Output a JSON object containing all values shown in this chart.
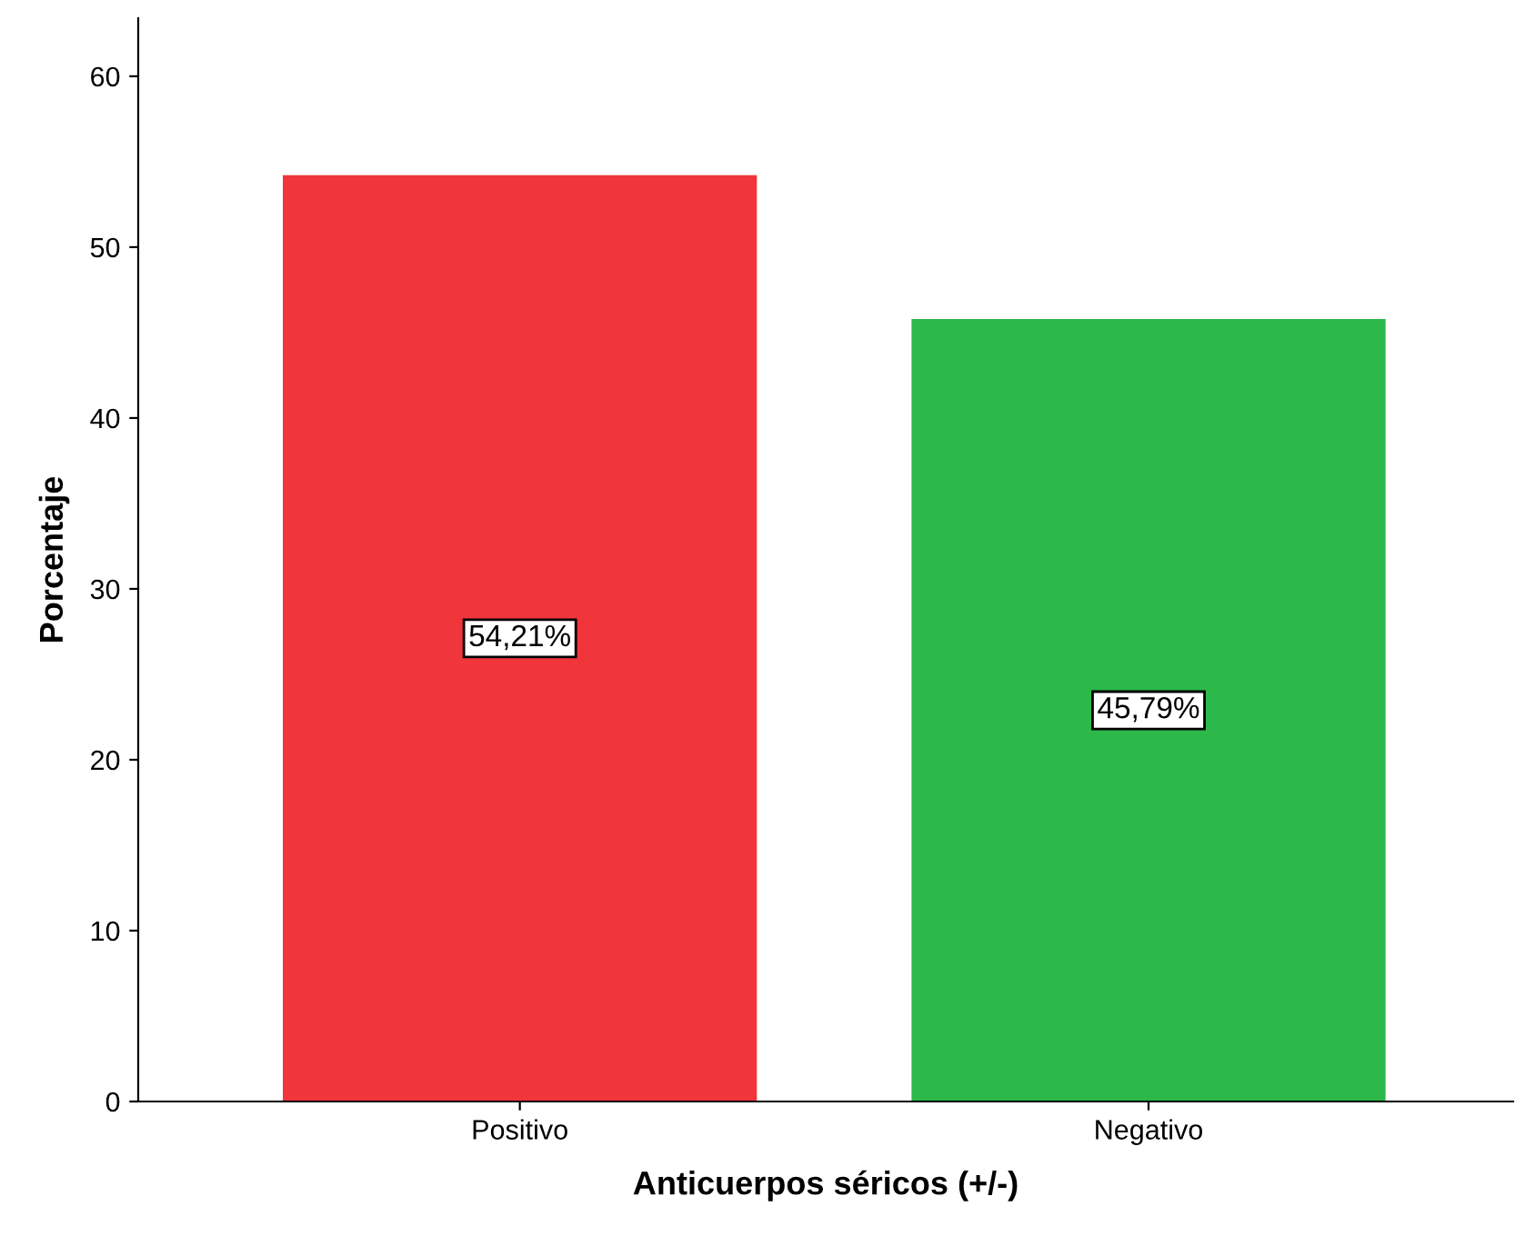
{
  "chart_data": {
    "type": "bar",
    "xlabel": "Anticuerpos séricos (+/-)",
    "ylabel": "Porcentaje",
    "categories": [
      "Positivo",
      "Negativo"
    ],
    "values": [
      54.21,
      45.79
    ],
    "colors": [
      "#f0353b",
      "#2db84a"
    ],
    "value_labels": [
      "54,21%",
      "45,79%"
    ],
    "ylim": [
      0,
      63.4
    ],
    "yticks": [
      0,
      10,
      20,
      30,
      40,
      50,
      60
    ],
    "grid": false,
    "legend": false
  }
}
